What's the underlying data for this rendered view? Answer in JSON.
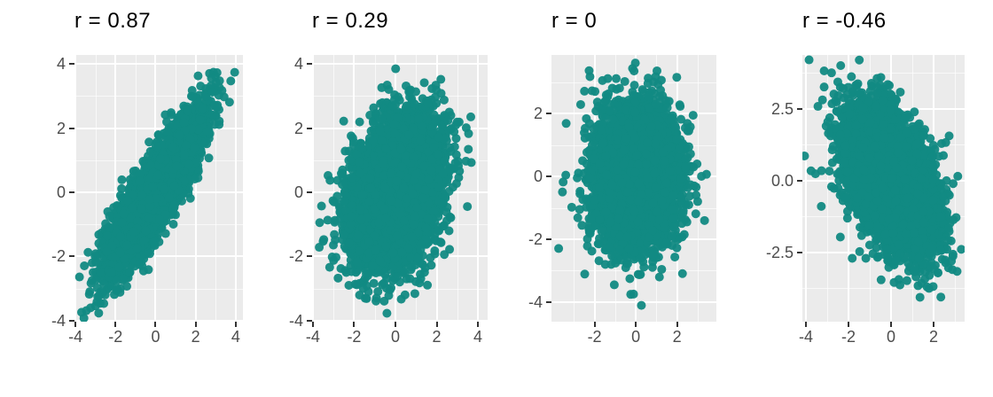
{
  "figure": {
    "background": "#ffffff",
    "description": "Four scatter plots illustrating different Pearson correlation strengths"
  },
  "chart_data": [
    {
      "type": "scatter",
      "title": "r = 0.87",
      "r": 0.87,
      "n_points": 5000,
      "x_sd": 1.13,
      "y_sd": 1.15,
      "seed": 42,
      "x_domain": [
        -4.05,
        4.36
      ],
      "y_domain": [
        -4.03,
        4.28
      ],
      "x_ticks": {
        "values": [
          -4,
          -2,
          0,
          2,
          4
        ],
        "labels": [
          "-4",
          "-2",
          "0",
          "2",
          "4"
        ]
      },
      "y_ticks": {
        "values": [
          4,
          2,
          0,
          -2,
          -4
        ],
        "labels": [
          "4",
          "2",
          "0",
          "-2",
          "-4"
        ]
      },
      "xlabel": "",
      "ylabel": "",
      "grid": true,
      "legend": false,
      "point_color": "#128a83",
      "point_radius_px": 5,
      "point_opacity": 0.95,
      "panel_bg": "#EBEBEB",
      "grid_major_color": "#FFFFFF",
      "grid_minor_color": "rgba(255,255,255,0.65)",
      "tick_text_color": "#4d4d4d",
      "tick_mark_color": "#333333"
    },
    {
      "type": "scatter",
      "title": "r = 0.29",
      "r": 0.29,
      "n_points": 5000,
      "x_sd": 1.07,
      "y_sd": 1.1,
      "seed": 1042,
      "x_domain": [
        -4.04,
        4.47
      ],
      "y_domain": [
        -4.03,
        4.28
      ],
      "x_ticks": {
        "values": [
          -4,
          -2,
          0,
          2,
          4
        ],
        "labels": [
          "-4",
          "-2",
          "0",
          "2",
          "4"
        ]
      },
      "y_ticks": {
        "values": [
          4,
          2,
          0,
          -2,
          -4
        ],
        "labels": [
          "4",
          "2",
          "0",
          "-2",
          "-4"
        ]
      },
      "xlabel": "",
      "ylabel": "",
      "grid": true,
      "legend": false,
      "point_color": "#128a83",
      "point_radius_px": 5,
      "point_opacity": 0.95,
      "panel_bg": "#EBEBEB",
      "grid_major_color": "#FFFFFF",
      "grid_minor_color": "rgba(255,255,255,0.65)",
      "tick_text_color": "#4d4d4d",
      "tick_mark_color": "#333333"
    },
    {
      "type": "scatter",
      "title": "r = 0",
      "r": 0,
      "n_points": 5000,
      "x_sd": 0.96,
      "y_sd": 1.06,
      "seed": 2042,
      "x_domain": [
        -4.09,
        3.91
      ],
      "y_domain": [
        -4.62,
        3.86
      ],
      "x_ticks": {
        "values": [
          -2,
          0,
          2
        ],
        "labels": [
          "-2",
          "0",
          "2"
        ]
      },
      "y_ticks": {
        "values": [
          2,
          0,
          -2,
          -4
        ],
        "labels": [
          "2",
          "0",
          "-2",
          "-4"
        ]
      },
      "xlabel": "",
      "ylabel": "",
      "grid": true,
      "legend": false,
      "point_color": "#128a83",
      "point_radius_px": 5,
      "point_opacity": 0.95,
      "panel_bg": "#EBEBEB",
      "grid_major_color": "#FFFFFF",
      "grid_minor_color": "rgba(255,255,255,0.65)",
      "tick_text_color": "#4d4d4d",
      "tick_mark_color": "#333333"
    },
    {
      "type": "scatter",
      "title": "r = -0.46",
      "r": -0.46,
      "n_points": 5000,
      "x_sd": 1.05,
      "y_sd": 1.2,
      "seed": 3042,
      "x_domain": [
        -4.17,
        3.46
      ],
      "y_domain": [
        -4.91,
        4.38
      ],
      "x_ticks": {
        "values": [
          -4,
          -2,
          0,
          2
        ],
        "labels": [
          "-4",
          "-2",
          "0",
          "2"
        ]
      },
      "y_ticks": {
        "values": [
          2.5,
          0,
          -2.5
        ],
        "labels": [
          "2.5",
          "0.0",
          "-2.5"
        ]
      },
      "xlabel": "",
      "ylabel": "",
      "grid": true,
      "legend": false,
      "point_color": "#128a83",
      "point_radius_px": 5,
      "point_opacity": 0.95,
      "panel_bg": "#EBEBEB",
      "grid_major_color": "#FFFFFF",
      "grid_minor_color": "rgba(255,255,255,0.65)",
      "tick_text_color": "#4d4d4d",
      "tick_mark_color": "#333333"
    }
  ]
}
